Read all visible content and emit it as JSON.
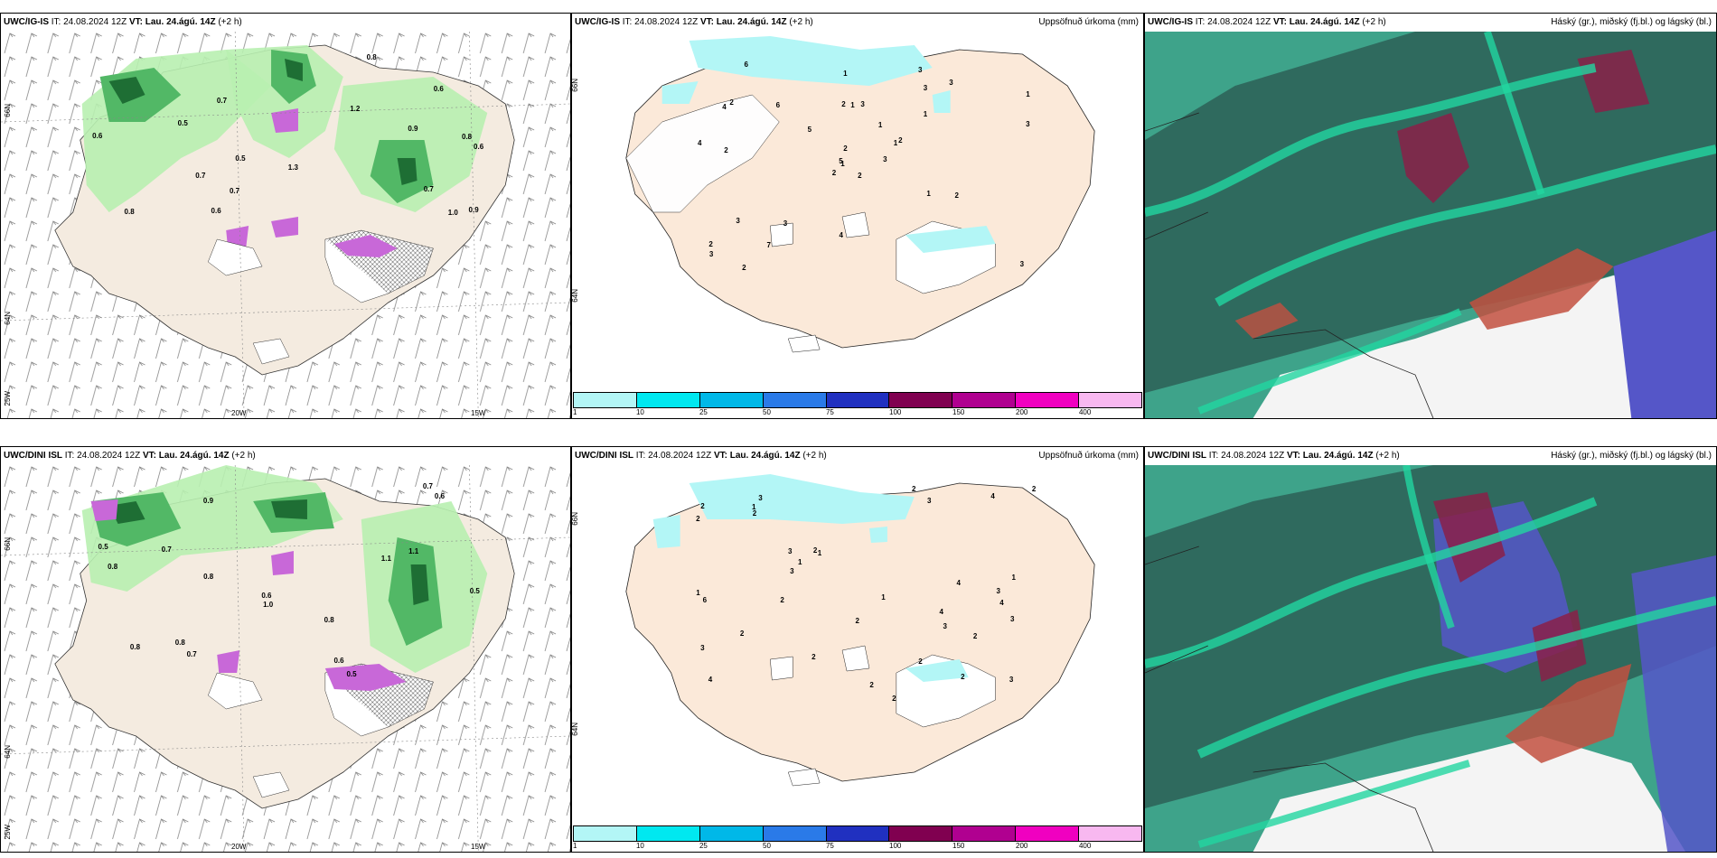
{
  "panels": [
    {
      "model": "UWC/IG-IS",
      "it": "IT: 24.08.2024 12Z",
      "vt_label": "VT:",
      "vt": "Lau. 24.ágú. 14Z",
      "lead": "(+2 h)",
      "right": ""
    },
    {
      "model": "UWC/IG-IS",
      "it": "IT: 24.08.2024 12Z",
      "vt_label": "VT:",
      "vt": "Lau. 24.ágú. 14Z",
      "lead": "(+2 h)",
      "right": "Uppsöfnuð úrkoma (mm)"
    },
    {
      "model": "UWC/IG-IS",
      "it": "IT: 24.08.2024 12Z",
      "vt_label": "VT:",
      "vt": "Lau. 24.ágú. 14Z",
      "lead": "(+2 h)",
      "right": "Háský (gr.), miðský (fj.bl.) og lágský (bl.)"
    },
    {
      "model": "UWC/DINI ISL",
      "it": "IT: 24.08.2024 12Z",
      "vt_label": "VT:",
      "vt": "Lau. 24.ágú. 14Z",
      "lead": "(+2 h)",
      "right": ""
    },
    {
      "model": "UWC/DINI ISL",
      "it": "IT: 24.08.2024 12Z",
      "vt_label": "VT:",
      "vt": "Lau. 24.ágú. 14Z",
      "lead": "(+2 h)",
      "right": "Uppsöfnuð úrkoma (mm)"
    },
    {
      "model": "UWC/DINI ISL",
      "it": "IT: 24.08.2024 12Z",
      "vt_label": "VT:",
      "vt": "Lau. 24.ágú. 14Z",
      "lead": "(+2 h)",
      "right": "Háský (gr.), miðský (fj.bl.) og lágský (bl.)"
    }
  ],
  "grid_labels": {
    "lat66": "66N",
    "lat64": "64N",
    "lon25": "25W",
    "lon20": "20W",
    "lon15": "15W"
  },
  "colorbar": {
    "colors": [
      "#b3f6f6",
      "#00e8f0",
      "#00b8e8",
      "#2a7ae8",
      "#2030c0",
      "#800050",
      "#b00090",
      "#f000c0",
      "#f8b8f0"
    ],
    "ticks": [
      "1",
      "10",
      "25",
      "50",
      "75",
      "100",
      "150",
      "200",
      "400"
    ]
  },
  "precip_values_top": [
    "2",
    "4",
    "1",
    "2",
    "1",
    "3",
    "3",
    "3",
    "3",
    "3",
    "6",
    "3",
    "2",
    "1",
    "2",
    "1",
    "2",
    "2",
    "1",
    "3",
    "5",
    "3",
    "7",
    "1",
    "2",
    "2",
    "2",
    "1",
    "4",
    "1",
    "3",
    "5",
    "4",
    "2",
    "6",
    "3"
  ],
  "precip_values_bottom": [
    "4",
    "4",
    "4",
    "3",
    "1",
    "2",
    "3",
    "3",
    "3",
    "2",
    "2",
    "1",
    "2",
    "3",
    "2",
    "1",
    "2",
    "1",
    "2",
    "2",
    "2",
    "4",
    "3",
    "3",
    "2",
    "1",
    "3",
    "6",
    "2",
    "4",
    "2",
    "2",
    "1",
    "2",
    "3",
    "2"
  ],
  "shower_values_top": [
    "0.7",
    "0.8",
    "1.2",
    "0.6",
    "0.5",
    "0.9",
    "0.7",
    "0.8",
    "1.0",
    "0.6",
    "0.5",
    "0.7",
    "0.9",
    "0.6",
    "0.8",
    "1.3",
    "0.7",
    "0.6"
  ],
  "shower_values_bottom": [
    "0.5",
    "0.9",
    "0.8",
    "0.7",
    "1.1",
    "0.6",
    "0.5",
    "0.8",
    "1.0",
    "0.7",
    "0.8",
    "0.5",
    "0.6",
    "0.8",
    "1.1",
    "0.7",
    "0.8",
    "0.6"
  ],
  "colors": {
    "land": "#f4ebe0",
    "precip_land": "#fbe9d9",
    "cloud_dark": "#2f6a5e",
    "cloud_mid": "#3ea38a",
    "cloud_edge": "#22d6a0",
    "cloud_high": "#8a2048",
    "cloud_blue": "#5556c8",
    "rain_light": "#b8efb0",
    "rain_mid": "#52b866",
    "rain_dark": "#1e6e34",
    "snow": "#c868d8"
  }
}
